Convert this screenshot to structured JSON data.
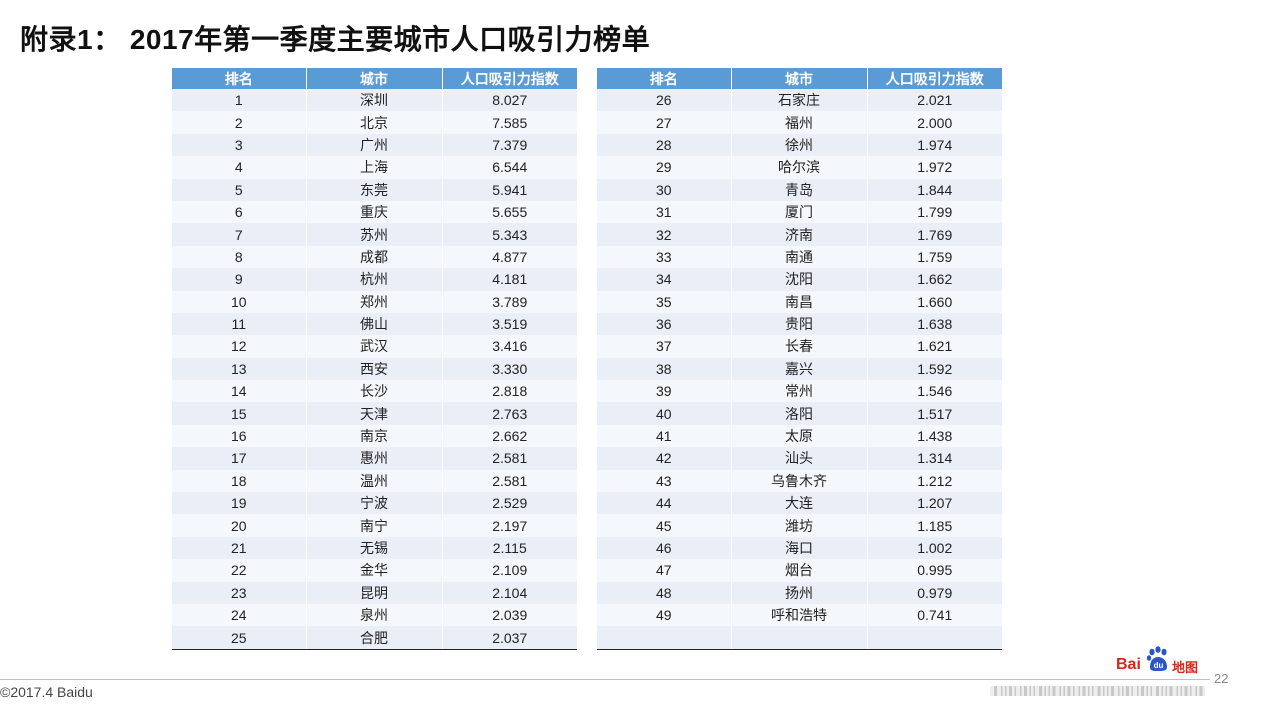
{
  "title": "附录1： 2017年第一季度主要城市人口吸引力榜单",
  "table": {
    "headers": [
      "排名",
      "城市",
      "人口吸引力指数"
    ],
    "left_rows": [
      [
        "1",
        "深圳",
        "8.027"
      ],
      [
        "2",
        "北京",
        "7.585"
      ],
      [
        "3",
        "广州",
        "7.379"
      ],
      [
        "4",
        "上海",
        "6.544"
      ],
      [
        "5",
        "东莞",
        "5.941"
      ],
      [
        "6",
        "重庆",
        "5.655"
      ],
      [
        "7",
        "苏州",
        "5.343"
      ],
      [
        "8",
        "成都",
        "4.877"
      ],
      [
        "9",
        "杭州",
        "4.181"
      ],
      [
        "10",
        "郑州",
        "3.789"
      ],
      [
        "11",
        "佛山",
        "3.519"
      ],
      [
        "12",
        "武汉",
        "3.416"
      ],
      [
        "13",
        "西安",
        "3.330"
      ],
      [
        "14",
        "长沙",
        "2.818"
      ],
      [
        "15",
        "天津",
        "2.763"
      ],
      [
        "16",
        "南京",
        "2.662"
      ],
      [
        "17",
        "惠州",
        "2.581"
      ],
      [
        "18",
        "温州",
        "2.581"
      ],
      [
        "19",
        "宁波",
        "2.529"
      ],
      [
        "20",
        "南宁",
        "2.197"
      ],
      [
        "21",
        "无锡",
        "2.115"
      ],
      [
        "22",
        "金华",
        "2.109"
      ],
      [
        "23",
        "昆明",
        "2.104"
      ],
      [
        "24",
        "泉州",
        "2.039"
      ],
      [
        "25",
        "合肥",
        "2.037"
      ]
    ],
    "right_rows": [
      [
        "26",
        "石家庄",
        "2.021"
      ],
      [
        "27",
        "福州",
        "2.000"
      ],
      [
        "28",
        "徐州",
        "1.974"
      ],
      [
        "29",
        "哈尔滨",
        "1.972"
      ],
      [
        "30",
        "青岛",
        "1.844"
      ],
      [
        "31",
        "厦门",
        "1.799"
      ],
      [
        "32",
        "济南",
        "1.769"
      ],
      [
        "33",
        "南通",
        "1.759"
      ],
      [
        "34",
        "沈阳",
        "1.662"
      ],
      [
        "35",
        "南昌",
        "1.660"
      ],
      [
        "36",
        "贵阳",
        "1.638"
      ],
      [
        "37",
        "长春",
        "1.621"
      ],
      [
        "38",
        "嘉兴",
        "1.592"
      ],
      [
        "39",
        "常州",
        "1.546"
      ],
      [
        "40",
        "洛阳",
        "1.517"
      ],
      [
        "41",
        "太原",
        "1.438"
      ],
      [
        "42",
        "汕头",
        "1.314"
      ],
      [
        "43",
        "乌鲁木齐",
        "1.212"
      ],
      [
        "44",
        "大连",
        "1.207"
      ],
      [
        "45",
        "潍坊",
        "1.185"
      ],
      [
        "46",
        "海口",
        "1.002"
      ],
      [
        "47",
        "烟台",
        "0.995"
      ],
      [
        "48",
        "扬州",
        "0.979"
      ],
      [
        "49",
        "呼和浩特",
        "0.741"
      ],
      [
        "",
        "",
        ""
      ]
    ]
  },
  "footer": {
    "copyright": "©2017.4 Baidu",
    "page_number": "22",
    "logo_text": "Bai",
    "logo_du": "du",
    "logo_map": "地图"
  },
  "colors": {
    "header_bg": "#5b9bd5",
    "row_odd": "#e9eef7",
    "row_even": "#f4f7fb",
    "logo_red": "#d7261b"
  }
}
